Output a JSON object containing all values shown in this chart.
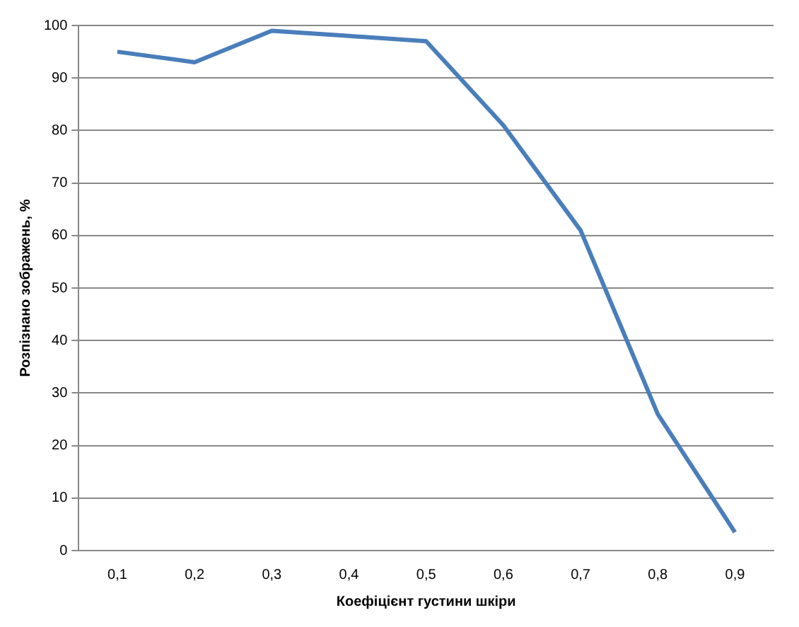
{
  "chart_data": {
    "type": "line",
    "xlabel": "Коефіцієнт густини шкіри",
    "ylabel": "Розпізнано зображень, %",
    "categories": [
      "0,1",
      "0,2",
      "0,3",
      "0,4",
      "0,5",
      "0,6",
      "0,7",
      "0,8",
      "0,9"
    ],
    "series": [
      {
        "color": "#4a7ebb",
        "values": [
          95,
          93,
          99,
          98,
          97,
          81,
          61,
          26,
          3.5
        ]
      }
    ],
    "ylim": [
      0,
      100
    ],
    "yticks": [
      0,
      10,
      20,
      30,
      40,
      50,
      60,
      70,
      80,
      90,
      100
    ],
    "grid": "y",
    "legend": false,
    "marker": "none",
    "line_style": "solid"
  }
}
